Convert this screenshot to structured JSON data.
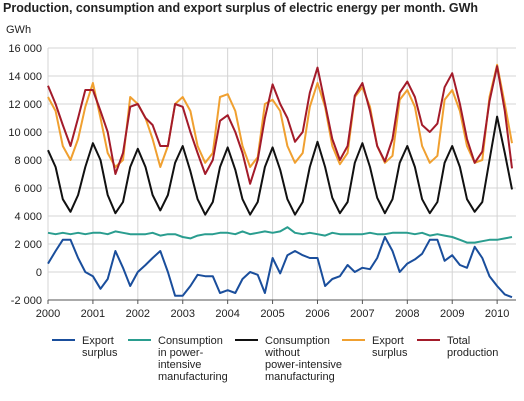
{
  "chart_data": {
    "type": "line",
    "title": "Production, consumption and export surplus of electric energy per month. GWh",
    "y_label": "GWh",
    "x": [
      2000,
      2000.17,
      2000.33,
      2000.5,
      2000.67,
      2000.83,
      2001,
      2001.17,
      2001.33,
      2001.5,
      2001.67,
      2001.83,
      2002,
      2002.17,
      2002.33,
      2002.5,
      2002.67,
      2002.83,
      2003,
      2003.17,
      2003.33,
      2003.5,
      2003.67,
      2003.83,
      2004,
      2004.17,
      2004.33,
      2004.5,
      2004.67,
      2004.83,
      2005,
      2005.17,
      2005.33,
      2005.5,
      2005.67,
      2005.83,
      2006,
      2006.17,
      2006.33,
      2006.5,
      2006.67,
      2006.83,
      2007,
      2007.17,
      2007.33,
      2007.5,
      2007.67,
      2007.83,
      2008,
      2008.17,
      2008.33,
      2008.5,
      2008.67,
      2008.83,
      2009,
      2009.17,
      2009.33,
      2009.5,
      2009.67,
      2009.83,
      2010,
      2010.17,
      2010.33
    ],
    "xlim": [
      2000,
      2010.42
    ],
    "xticks": [
      2000,
      2001,
      2002,
      2003,
      2004,
      2005,
      2006,
      2007,
      2008,
      2009,
      2010
    ],
    "ylim": [
      -2000,
      16000
    ],
    "yticks": [
      {
        "value": -2000,
        "label": "-2 000"
      },
      0,
      {
        "value": 2000,
        "label": "2 000"
      },
      {
        "value": 4000,
        "label": "4 000"
      },
      {
        "value": 6000,
        "label": "6 000"
      },
      {
        "value": 8000,
        "label": "8 000"
      },
      {
        "value": 10000,
        "label": "10 000"
      },
      {
        "value": 12000,
        "label": "12 000"
      },
      {
        "value": 14000,
        "label": "14 000"
      },
      {
        "value": 16000,
        "label": "16 000"
      }
    ],
    "grid": true,
    "series": [
      {
        "name": "Export\nsurplus",
        "color": "#1a4e9c",
        "values": [
          600,
          1500,
          2300,
          2300,
          1000,
          0,
          -300,
          -1200,
          -500,
          1500,
          300,
          -1000,
          0,
          500,
          1000,
          1500,
          0,
          -1700,
          -1700,
          -1000,
          -200,
          -300,
          -300,
          -1500,
          -1300,
          -1500,
          -500,
          0,
          -200,
          -1500,
          1000,
          -100,
          1200,
          1500,
          1200,
          1000,
          1000,
          -1000,
          -500,
          -300,
          500,
          0,
          300,
          200,
          1000,
          2500,
          1500,
          0,
          600,
          900,
          1300,
          2300,
          2300,
          800,
          1200,
          500,
          300,
          1800,
          1000,
          -300,
          -1000,
          -1600,
          -1800
        ]
      },
      {
        "name": "Consumption\nin power-\nintensive\nmanufacturing",
        "color": "#2a9d8f",
        "values": [
          2800,
          2700,
          2800,
          2700,
          2800,
          2700,
          2800,
          2800,
          2700,
          2900,
          2800,
          2700,
          2700,
          2700,
          2800,
          2600,
          2700,
          2700,
          2500,
          2400,
          2600,
          2700,
          2700,
          2800,
          2800,
          2700,
          2900,
          2700,
          2800,
          2900,
          2800,
          2900,
          3200,
          2800,
          2700,
          2800,
          2700,
          2600,
          2800,
          2700,
          2700,
          2700,
          2700,
          2800,
          2700,
          2700,
          2800,
          2800,
          2800,
          2700,
          2800,
          2600,
          2700,
          2600,
          2500,
          2300,
          2100,
          2100,
          2200,
          2300,
          2300,
          2400,
          2500
        ]
      },
      {
        "name": "Consumption\nwithout\npower-intensive\nmanufacturing",
        "color": "#111111",
        "values": [
          8700,
          7500,
          5200,
          4300,
          5500,
          7500,
          9200,
          8000,
          5500,
          4200,
          5000,
          7500,
          8800,
          7500,
          5500,
          4400,
          5500,
          7800,
          9000,
          7200,
          5200,
          4100,
          5000,
          7500,
          8900,
          7300,
          5200,
          4100,
          5000,
          7500,
          8900,
          7300,
          5200,
          4100,
          5000,
          7500,
          9300,
          7500,
          5300,
          4200,
          5000,
          7800,
          9200,
          7500,
          5300,
          4200,
          5200,
          7800,
          9000,
          7500,
          5200,
          4200,
          5000,
          7800,
          9000,
          7500,
          5200,
          4300,
          5000,
          8000,
          11100,
          8500,
          5900
        ]
      },
      {
        "name": "Export\nsurplus",
        "color": "#f0a030",
        "values": [
          12500,
          11500,
          9000,
          8000,
          9500,
          11800,
          13500,
          11000,
          8500,
          7500,
          8000,
          12500,
          12000,
          11000,
          9500,
          7500,
          9000,
          12000,
          12500,
          11500,
          9000,
          7800,
          8500,
          12500,
          12700,
          11500,
          9000,
          7500,
          8200,
          12000,
          12300,
          11500,
          9000,
          7800,
          8500,
          11800,
          13500,
          11800,
          9000,
          7700,
          8500,
          12500,
          13200,
          11800,
          9000,
          7800,
          8300,
          12300,
          13000,
          11800,
          9000,
          7800,
          8300,
          12300,
          13000,
          11500,
          9000,
          7800,
          8000,
          12500,
          14800,
          12000,
          9200
        ]
      },
      {
        "name": "Total\nproduction",
        "color": "#a31b2a",
        "values": [
          13300,
          12000,
          10500,
          9000,
          11000,
          13000,
          13000,
          11500,
          10000,
          7000,
          8500,
          11800,
          12000,
          11000,
          10500,
          9000,
          9000,
          12000,
          11800,
          10000,
          8500,
          7000,
          8000,
          10800,
          11200,
          10000,
          8500,
          6300,
          8000,
          11000,
          13400,
          12000,
          11000,
          9300,
          10000,
          12800,
          14600,
          12000,
          9500,
          8000,
          9000,
          12600,
          13500,
          11500,
          9000,
          7900,
          9500,
          12800,
          13600,
          12500,
          10500,
          10000,
          10600,
          13200,
          14200,
          12000,
          9500,
          7800,
          8600,
          12200,
          14700,
          11500,
          7400
        ]
      }
    ]
  }
}
